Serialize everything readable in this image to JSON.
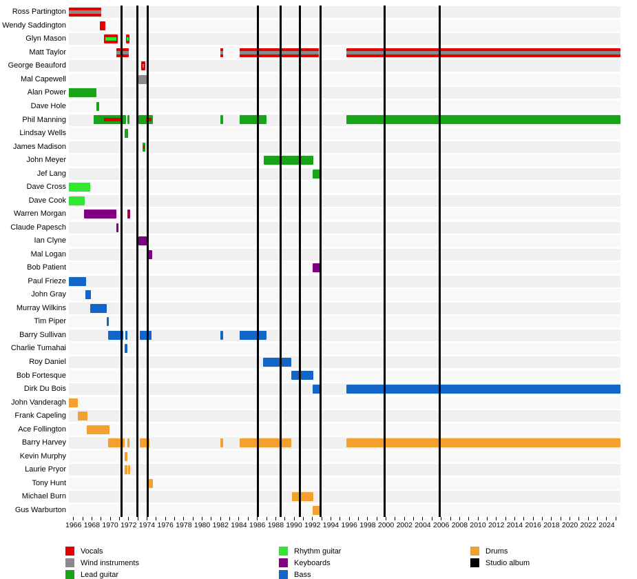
{
  "chart_data": {
    "type": "timeline",
    "title": "",
    "x_axis": {
      "domain_start": 1965.5,
      "domain_end": 2025.5,
      "minor_tick_step": 1,
      "label_step": 2,
      "tick_labels": [
        "1966",
        "1968",
        "1970",
        "1972",
        "1974",
        "1976",
        "1978",
        "1980",
        "1982",
        "1984",
        "1986",
        "1988",
        "1990",
        "1992",
        "1994",
        "1996",
        "1998",
        "2000",
        "2002",
        "2004",
        "2006",
        "2008",
        "2010",
        "2012",
        "2014",
        "2016",
        "2018",
        "2020",
        "2022",
        "2024"
      ]
    },
    "roles": {
      "vocals": {
        "label": "Vocals",
        "color": "#e00000"
      },
      "wind": {
        "label": "Wind instruments",
        "color": "#8a8a8a"
      },
      "lead": {
        "label": "Lead guitar",
        "color": "#18a318"
      },
      "rhythm": {
        "label": "Rhythm guitar",
        "color": "#30e830"
      },
      "keyboards": {
        "label": "Keyboards",
        "color": "#800080"
      },
      "bass": {
        "label": "Bass",
        "color": "#1166c8"
      },
      "drums": {
        "label": "Drums",
        "color": "#f4a030"
      },
      "album": {
        "label": "Studio album",
        "color": "#000000"
      }
    },
    "legend_columns": [
      [
        "vocals",
        "wind",
        "lead"
      ],
      [
        "rhythm",
        "keyboards",
        "bass"
      ],
      [
        "drums",
        "album"
      ]
    ],
    "album_marker": {
      "label": "Studio album",
      "color": "#000000",
      "years": [
        1971.2,
        1972.95,
        1974.05,
        1986.05,
        1988.55,
        1990.6,
        1992.85,
        1999.85,
        2005.85
      ]
    },
    "members": [
      {
        "name": "Ross Partington",
        "segments": [
          {
            "from": 1965.5,
            "to": 1969.05,
            "role": "vocals",
            "stripe": "wind"
          }
        ]
      },
      {
        "name": "Wendy Saddington",
        "segments": [
          {
            "from": 1968.85,
            "to": 1969.5,
            "role": "vocals"
          }
        ]
      },
      {
        "name": "Glyn Mason",
        "segments": [
          {
            "from": 1969.3,
            "to": 1970.8,
            "role": "vocals",
            "stripe": "rhythm",
            "stripe_from": 1969.5,
            "stripe_to": 1970.65
          },
          {
            "from": 1971.75,
            "to": 1972.1,
            "role": "vocals",
            "stripe": "rhythm",
            "stripe_from": 1971.8,
            "stripe_to": 1972.03
          }
        ]
      },
      {
        "name": "Matt Taylor",
        "segments": [
          {
            "from": 1970.65,
            "to": 1972.0,
            "role": "vocals",
            "stripe": "wind"
          },
          {
            "from": 1982.0,
            "to": 1982.3,
            "role": "vocals",
            "stripe": "wind"
          },
          {
            "from": 1984.05,
            "to": 1992.7,
            "role": "vocals",
            "stripe": "wind"
          },
          {
            "from": 1995.65,
            "to": 2025.5,
            "role": "vocals",
            "stripe": "wind"
          }
        ]
      },
      {
        "name": "George Beauford",
        "segments": [
          {
            "from": 1973.4,
            "to": 1973.78,
            "role": "vocals",
            "stripe": "wind",
            "stripe_from": 1973.5,
            "stripe_to": 1973.7
          }
        ]
      },
      {
        "name": "Mal Capewell",
        "segments": [
          {
            "from": 1973.1,
            "to": 1974.2,
            "role": "wind"
          }
        ]
      },
      {
        "name": "Alan Power",
        "segments": [
          {
            "from": 1965.5,
            "to": 1968.5,
            "role": "lead"
          }
        ]
      },
      {
        "name": "Dave Hole",
        "segments": [
          {
            "from": 1968.5,
            "to": 1968.78,
            "role": "lead"
          }
        ]
      },
      {
        "name": "Phil Manning",
        "segments": [
          {
            "from": 1968.2,
            "to": 1971.75,
            "role": "lead",
            "stripe": "vocals",
            "stripe_from": 1969.35,
            "stripe_to": 1971.1
          },
          {
            "from": 1971.85,
            "to": 1972.12,
            "role": "lead"
          },
          {
            "from": 1973.1,
            "to": 1974.65,
            "role": "lead",
            "stripe": "vocals",
            "stripe_from": 1973.9,
            "stripe_to": 1974.5
          },
          {
            "from": 1982.0,
            "to": 1982.3,
            "role": "lead"
          },
          {
            "from": 1984.05,
            "to": 1987.0,
            "role": "lead"
          },
          {
            "from": 1995.65,
            "to": 2025.5,
            "role": "lead"
          }
        ]
      },
      {
        "name": "Lindsay Wells",
        "segments": [
          {
            "from": 1971.6,
            "to": 1971.95,
            "role": "lead"
          }
        ]
      },
      {
        "name": "James Madison",
        "segments": [
          {
            "from": 1973.5,
            "to": 1973.8,
            "role": "lead",
            "stripe": "vocals",
            "stripe_from": 1973.56,
            "stripe_to": 1973.74
          }
        ]
      },
      {
        "name": "John Meyer",
        "segments": [
          {
            "from": 1986.7,
            "to": 1992.1,
            "role": "lead"
          }
        ]
      },
      {
        "name": "Jef Lang",
        "segments": [
          {
            "from": 1992.0,
            "to": 1992.85,
            "role": "lead"
          }
        ]
      },
      {
        "name": "Dave Cross",
        "segments": [
          {
            "from": 1965.5,
            "to": 1967.8,
            "role": "rhythm"
          }
        ]
      },
      {
        "name": "Dave Cook",
        "segments": [
          {
            "from": 1965.5,
            "to": 1967.2,
            "role": "rhythm"
          }
        ]
      },
      {
        "name": "Warren Morgan",
        "segments": [
          {
            "from": 1967.15,
            "to": 1970.7,
            "role": "keyboards"
          },
          {
            "from": 1971.85,
            "to": 1972.2,
            "role": "keyboards",
            "stripe": "vocals",
            "stripe_from": 1971.95,
            "stripe_to": 1972.12
          }
        ]
      },
      {
        "name": "Claude Papesch",
        "segments": [
          {
            "from": 1970.65,
            "to": 1970.92,
            "role": "keyboards"
          }
        ]
      },
      {
        "name": "Ian Clyne",
        "segments": [
          {
            "from": 1973.1,
            "to": 1974.2,
            "role": "keyboards"
          }
        ]
      },
      {
        "name": "Mal Logan",
        "segments": [
          {
            "from": 1974.15,
            "to": 1974.58,
            "role": "keyboards"
          }
        ]
      },
      {
        "name": "Bob Patient",
        "segments": [
          {
            "from": 1992.0,
            "to": 1992.9,
            "role": "keyboards"
          }
        ]
      },
      {
        "name": "Paul Frieze",
        "segments": [
          {
            "from": 1965.5,
            "to": 1967.35,
            "role": "bass"
          }
        ]
      },
      {
        "name": "John Gray",
        "segments": [
          {
            "from": 1967.3,
            "to": 1967.88,
            "role": "bass"
          }
        ]
      },
      {
        "name": "Murray Wilkins",
        "segments": [
          {
            "from": 1967.8,
            "to": 1969.65,
            "role": "bass"
          }
        ]
      },
      {
        "name": "Tim Piper",
        "segments": [
          {
            "from": 1969.6,
            "to": 1969.87,
            "role": "bass"
          }
        ]
      },
      {
        "name": "Barry Sullivan",
        "segments": [
          {
            "from": 1969.8,
            "to": 1971.42,
            "role": "bass"
          },
          {
            "from": 1971.65,
            "to": 1971.88,
            "role": "bass"
          },
          {
            "from": 1973.25,
            "to": 1974.5,
            "role": "bass"
          },
          {
            "from": 1982.0,
            "to": 1982.3,
            "role": "bass"
          },
          {
            "from": 1984.05,
            "to": 1987.0,
            "role": "bass"
          }
        ]
      },
      {
        "name": "Charlie Tumahai",
        "segments": [
          {
            "from": 1971.55,
            "to": 1971.85,
            "role": "bass"
          }
        ]
      },
      {
        "name": "Roy Daniel",
        "segments": [
          {
            "from": 1986.6,
            "to": 1989.72,
            "role": "bass"
          }
        ]
      },
      {
        "name": "Bob Fortesque",
        "segments": [
          {
            "from": 1989.72,
            "to": 1992.1,
            "role": "bass"
          }
        ]
      },
      {
        "name": "Dirk Du Bois",
        "segments": [
          {
            "from": 1992.0,
            "to": 1992.82,
            "role": "bass"
          },
          {
            "from": 1995.65,
            "to": 2025.5,
            "role": "bass"
          }
        ]
      },
      {
        "name": "John Vanderagh",
        "segments": [
          {
            "from": 1965.5,
            "to": 1966.5,
            "role": "drums"
          }
        ]
      },
      {
        "name": "Frank Capeling",
        "segments": [
          {
            "from": 1966.5,
            "to": 1967.5,
            "role": "drums"
          }
        ]
      },
      {
        "name": "Ace Follington",
        "segments": [
          {
            "from": 1967.45,
            "to": 1969.9,
            "role": "drums"
          }
        ]
      },
      {
        "name": "Barry Harvey",
        "segments": [
          {
            "from": 1969.75,
            "to": 1971.6,
            "role": "drums"
          },
          {
            "from": 1971.9,
            "to": 1972.12,
            "role": "drums"
          },
          {
            "from": 1973.2,
            "to": 1974.25,
            "role": "drums"
          },
          {
            "from": 1982.0,
            "to": 1982.3,
            "role": "drums"
          },
          {
            "from": 1984.05,
            "to": 1989.72,
            "role": "drums"
          },
          {
            "from": 1995.65,
            "to": 2025.5,
            "role": "drums"
          }
        ]
      },
      {
        "name": "Kevin Murphy",
        "segments": [
          {
            "from": 1971.6,
            "to": 1971.85,
            "role": "drums"
          }
        ]
      },
      {
        "name": "Laurie Pryor",
        "segments": [
          {
            "from": 1971.6,
            "to": 1971.85,
            "role": "drums"
          },
          {
            "from": 1971.95,
            "to": 1972.15,
            "role": "drums"
          }
        ]
      },
      {
        "name": "Tony Hunt",
        "segments": [
          {
            "from": 1974.2,
            "to": 1974.62,
            "role": "drums"
          }
        ]
      },
      {
        "name": "Michael Burn",
        "segments": [
          {
            "from": 1989.75,
            "to": 1992.1,
            "role": "drums"
          }
        ]
      },
      {
        "name": "Gus Warburton",
        "segments": [
          {
            "from": 1992.05,
            "to": 1993.0,
            "role": "drums"
          }
        ]
      }
    ]
  }
}
